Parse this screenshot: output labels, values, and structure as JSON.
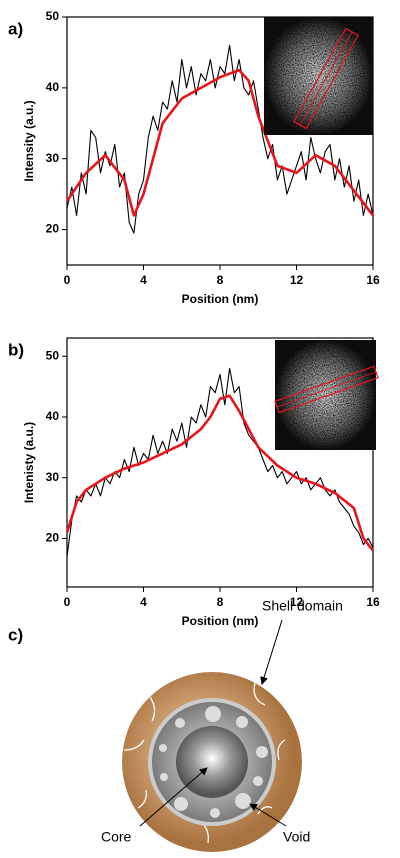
{
  "chart_data": [
    {
      "type": "line",
      "label": "a)",
      "xlabel": "Position (nm)",
      "ylabel": "Intensity (a.u.)",
      "xlim": [
        0,
        16
      ],
      "xticks": [
        0,
        4,
        8,
        12,
        16
      ],
      "ylim": [
        15,
        50
      ],
      "yticks": [
        20,
        30,
        40,
        50
      ],
      "series": [
        {
          "color": "#000000",
          "x": [
            0,
            0.25,
            0.5,
            0.75,
            1,
            1.25,
            1.5,
            1.75,
            2,
            2.25,
            2.5,
            2.75,
            3,
            3.25,
            3.5,
            3.75,
            4,
            4.25,
            4.5,
            4.75,
            5,
            5.25,
            5.5,
            5.75,
            6,
            6.25,
            6.5,
            6.75,
            7,
            7.25,
            7.5,
            7.75,
            8,
            8.25,
            8.5,
            8.75,
            9,
            9.25,
            9.5,
            9.75,
            10,
            10.25,
            10.5,
            10.75,
            11,
            11.25,
            11.5,
            11.75,
            12,
            12.25,
            12.5,
            12.75,
            13,
            13.25,
            13.5,
            13.75,
            14,
            14.25,
            14.5,
            14.75,
            15,
            15.25,
            15.5,
            15.75,
            16
          ],
          "values": [
            23,
            26,
            22,
            28,
            25,
            34,
            33,
            28,
            31,
            29,
            32,
            26,
            28,
            21,
            19.5,
            25,
            27,
            33,
            36,
            34,
            38,
            37,
            41,
            38,
            44,
            40,
            43,
            39,
            42,
            41,
            44,
            40,
            43,
            42,
            46,
            41,
            44,
            40,
            39,
            41,
            37,
            33,
            30,
            32,
            27,
            29,
            25,
            27,
            29,
            31,
            27,
            33,
            30,
            28,
            31,
            32,
            27,
            30,
            26,
            29,
            24,
            27,
            22,
            25,
            22
          ]
        },
        {
          "color": "#e8141c",
          "x": [
            0,
            1,
            2,
            3,
            3.5,
            4,
            5,
            6,
            7,
            8,
            9,
            9.5,
            10,
            11,
            12,
            13,
            14,
            15,
            16
          ],
          "values": [
            24,
            28,
            30.5,
            27,
            22,
            25,
            35,
            38.5,
            40,
            41.5,
            42.5,
            41,
            36,
            29,
            28,
            30.5,
            29,
            25.5,
            22
          ]
        }
      ]
    },
    {
      "type": "line",
      "label": "b)",
      "xlabel": "Position (nm)",
      "ylabel": "Intenisty (a.u.)",
      "xlim": [
        0,
        16
      ],
      "xticks": [
        0,
        4,
        8,
        12,
        16
      ],
      "ylim": [
        12,
        53
      ],
      "yticks": [
        20,
        30,
        40,
        50
      ],
      "series": [
        {
          "color": "#000000",
          "x": [
            0,
            0.25,
            0.5,
            0.75,
            1,
            1.25,
            1.5,
            1.75,
            2,
            2.25,
            2.5,
            2.75,
            3,
            3.25,
            3.5,
            3.75,
            4,
            4.25,
            4.5,
            4.75,
            5,
            5.25,
            5.5,
            5.75,
            6,
            6.25,
            6.5,
            6.75,
            7,
            7.25,
            7.5,
            7.75,
            8,
            8.25,
            8.5,
            8.75,
            9,
            9.25,
            9.5,
            9.75,
            10,
            10.25,
            10.5,
            10.75,
            11,
            11.25,
            11.5,
            11.75,
            12,
            12.25,
            12.5,
            12.75,
            13,
            13.25,
            13.5,
            13.75,
            14,
            14.25,
            14.5,
            14.75,
            15,
            15.25,
            15.5,
            15.75,
            16
          ],
          "values": [
            17,
            23,
            27,
            26,
            28,
            27,
            29,
            27,
            30,
            29,
            31,
            30,
            33,
            31,
            35,
            32,
            34,
            33,
            37,
            34,
            36,
            34,
            38,
            36,
            39,
            35,
            40,
            39,
            42,
            40,
            45,
            44,
            47,
            42,
            48,
            44,
            45,
            39,
            37,
            36,
            35,
            33,
            31,
            32,
            30,
            31,
            29,
            30,
            31,
            29,
            30,
            28,
            29,
            30,
            28,
            27,
            28,
            26,
            25,
            24,
            22,
            21,
            19,
            20,
            18.5
          ]
        },
        {
          "color": "#e8141c",
          "x": [
            0,
            0.5,
            1,
            2,
            3,
            4,
            5,
            6,
            7,
            7.5,
            8,
            8.5,
            9,
            10,
            11,
            12,
            13,
            14,
            15,
            15.5,
            16
          ],
          "values": [
            21,
            26,
            28,
            30,
            31.5,
            32.5,
            34,
            35.5,
            38,
            40,
            43,
            43.5,
            41,
            35,
            32,
            30,
            29,
            27.5,
            25,
            20,
            18
          ]
        }
      ]
    }
  ],
  "diagram": {
    "label": "c)",
    "shell": "Shell domain",
    "core": "Core",
    "void": "Void"
  }
}
